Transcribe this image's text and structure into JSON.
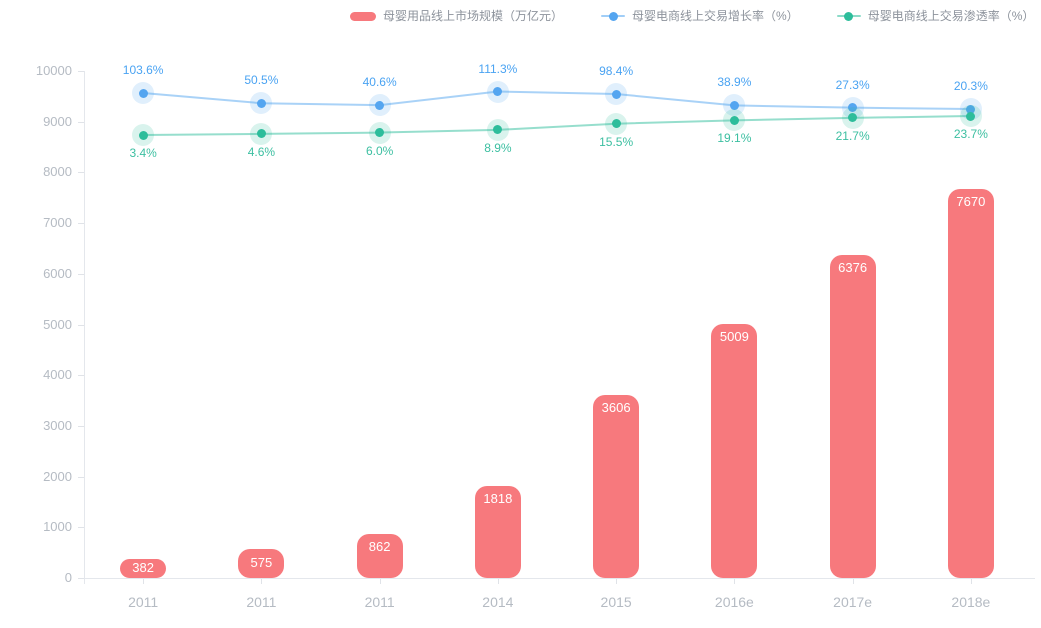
{
  "chart_data": {
    "type": "bar+line",
    "title": "",
    "legend_position": "top",
    "grid": false,
    "categories": [
      "2011",
      "2011",
      "2011",
      "2014",
      "2015",
      "2016e",
      "2017e",
      "2018e"
    ],
    "series": [
      {
        "name": "母婴用品线上市场规模（万亿元）",
        "type": "bar",
        "color": "#f7797d",
        "values": [
          382,
          575,
          862,
          1818,
          3606,
          5009,
          6376,
          7670
        ],
        "value_labels": [
          "382",
          "575",
          "862",
          "1818",
          "3606",
          "5009",
          "6376",
          "7670"
        ],
        "label_color": "#ffffff"
      },
      {
        "name": "母婴电商线上交易增长率（%）",
        "type": "line",
        "color": "#54a5f0",
        "label_color": "#4aa3f2",
        "values": [
          103.6,
          50.5,
          40.6,
          111.3,
          98.4,
          38.9,
          27.3,
          20.3
        ],
        "value_labels": [
          "103.6%",
          "50.5%",
          "40.6%",
          "111.3%",
          "98.4%",
          "38.9%",
          "27.3%",
          "20.3%"
        ],
        "label_placement": "above"
      },
      {
        "name": "母婴电商线上交易渗透率（%）",
        "type": "line",
        "color": "#2dbd9b",
        "label_color": "#3cbfa1",
        "values": [
          3.4,
          4.6,
          6.0,
          8.9,
          15.5,
          19.1,
          21.7,
          23.7
        ],
        "value_labels": [
          "3.4%",
          "4.6%",
          "6.0%",
          "8.9%",
          "15.5%",
          "19.1%",
          "21.7%",
          "23.7%"
        ],
        "label_placement": "below"
      }
    ],
    "yaxis": {
      "min": 0,
      "max": 10000,
      "step": 1000,
      "tick_labels": [
        "0",
        "1000",
        "2000",
        "3000",
        "4000",
        "5000",
        "6000",
        "7000",
        "8000",
        "9000",
        "10000"
      ]
    },
    "colors": {
      "axis_line": "#e4e7ec",
      "axis_text": "#b5bbc3",
      "legend_text": "#8d939c",
      "background": "#ffffff"
    }
  }
}
